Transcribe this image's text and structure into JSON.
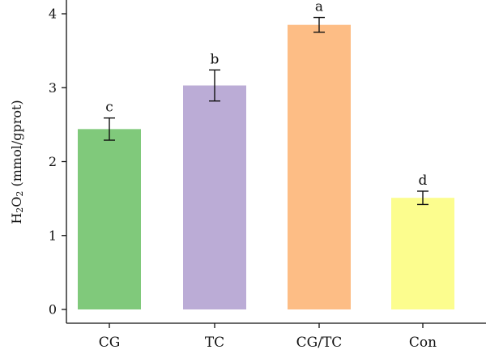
{
  "chart_data": {
    "type": "bar",
    "title": "",
    "xlabel": "",
    "ylabel": "H2O2 (mmol/gprot)",
    "ylabel_parts": {
      "prefix": "H",
      "sub1": "2",
      "mid": "O",
      "sub2": "2",
      "suffix": " (mmol/gprot)"
    },
    "categories": [
      "CG",
      "TC",
      "CG/TC",
      "Con"
    ],
    "values": [
      2.44,
      3.03,
      3.85,
      1.51
    ],
    "errors": [
      0.15,
      0.21,
      0.1,
      0.09
    ],
    "significance_letters": [
      "c",
      "b",
      "a",
      "d"
    ],
    "colors": [
      "#80c97b",
      "#bbacd6",
      "#fdbd85",
      "#fcfd8e"
    ],
    "ylim": [
      0,
      4
    ],
    "yticks": [
      0,
      1,
      2,
      3,
      4
    ],
    "grid": false,
    "legend": "none"
  }
}
